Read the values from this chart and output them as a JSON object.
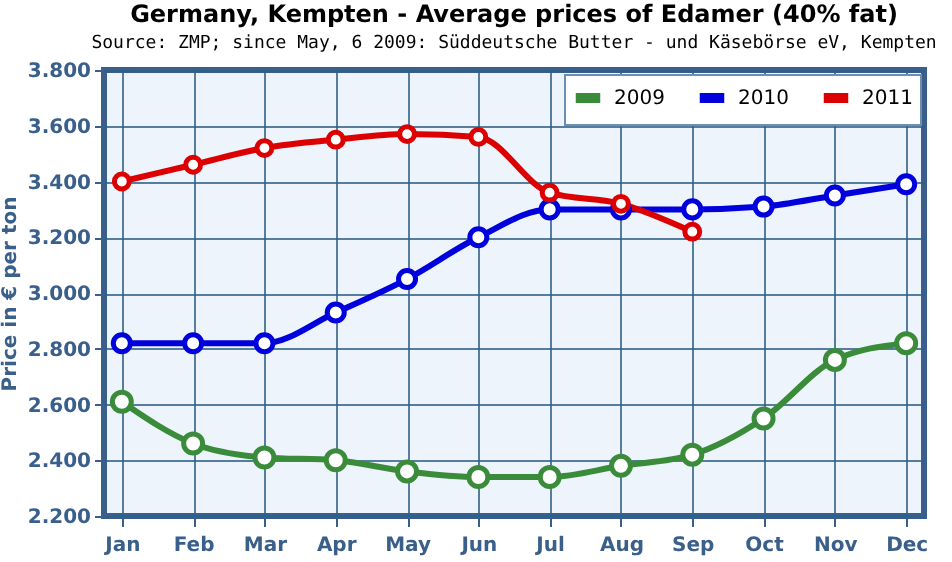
{
  "chart_data": {
    "type": "line",
    "title": "Germany, Kempten - Average prices of Edamer (40% fat)",
    "subtitle": "Source: ZMP; since May, 6 2009: Süddeutsche Butter - und Käsebörse eV, Kempten",
    "ylabel": "Price in € per ton",
    "categories": [
      "Jan",
      "Feb",
      "Mar",
      "Apr",
      "May",
      "Jun",
      "Jul",
      "Aug",
      "Sep",
      "Oct",
      "Nov",
      "Dec"
    ],
    "series": [
      {
        "name": "2009",
        "color": "#3a8c3a",
        "values": [
          2610,
          2460,
          2410,
          2400,
          2360,
          2340,
          2340,
          2380,
          2420,
          2550,
          2760,
          2820
        ]
      },
      {
        "name": "2010",
        "color": "#0000dd",
        "values": [
          2820,
          2820,
          2820,
          2930,
          3050,
          3200,
          3300,
          3300,
          3300,
          3310,
          3350,
          3390
        ]
      },
      {
        "name": "2011",
        "color": "#dd0000",
        "values": [
          3400,
          3460,
          3520,
          3550,
          3570,
          3560,
          3360,
          3320,
          3220,
          null,
          null,
          null
        ]
      }
    ],
    "ylim": [
      2200,
      3800
    ],
    "yticks": [
      {
        "value": 2200,
        "label": "2.200"
      },
      {
        "value": 2400,
        "label": "2.400"
      },
      {
        "value": 2600,
        "label": "2.600"
      },
      {
        "value": 2800,
        "label": "2.800"
      },
      {
        "value": 3000,
        "label": "3.000"
      },
      {
        "value": 3200,
        "label": "3.200"
      },
      {
        "value": 3400,
        "label": "3.400"
      },
      {
        "value": 3600,
        "label": "3.600"
      },
      {
        "value": 3800,
        "label": "3.800"
      }
    ],
    "grid": true,
    "legend": "top right",
    "marker": "circle",
    "line_style": "solid"
  }
}
